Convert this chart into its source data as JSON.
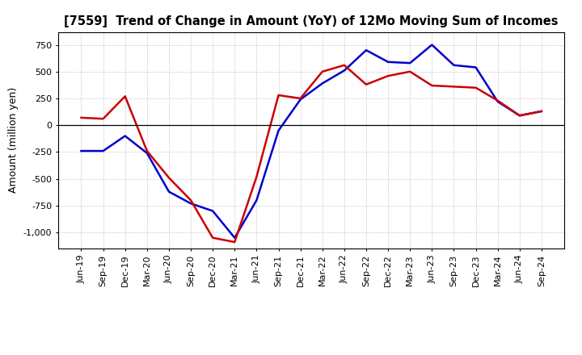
{
  "title": "[7559]  Trend of Change in Amount (YoY) of 12Mo Moving Sum of Incomes",
  "ylabel": "Amount (million yen)",
  "x_labels": [
    "Jun-19",
    "Sep-19",
    "Dec-19",
    "Mar-20",
    "Jun-20",
    "Sep-20",
    "Dec-20",
    "Mar-21",
    "Jun-21",
    "Sep-21",
    "Dec-21",
    "Mar-22",
    "Jun-22",
    "Sep-22",
    "Dec-22",
    "Mar-23",
    "Jun-23",
    "Sep-23",
    "Dec-23",
    "Mar-24",
    "Jun-24",
    "Sep-24"
  ],
  "ordinary_income": [
    -240,
    -240,
    -100,
    -260,
    -620,
    -730,
    -800,
    -1050,
    -700,
    -50,
    240,
    390,
    510,
    700,
    590,
    580,
    750,
    560,
    540,
    220,
    90,
    130
  ],
  "net_income": [
    70,
    60,
    270,
    -240,
    -490,
    -700,
    -1050,
    -1090,
    -480,
    280,
    250,
    500,
    560,
    380,
    460,
    500,
    370,
    360,
    350,
    230,
    90,
    130
  ],
  "ordinary_color": "#0000cc",
  "net_color": "#cc0000",
  "background_color": "#ffffff",
  "grid_color": "#b0b0b0",
  "ylim": [
    -1150,
    870
  ],
  "yticks": [
    -1000,
    -750,
    -500,
    -250,
    0,
    250,
    500,
    750
  ],
  "line_width": 1.8,
  "title_fontsize": 10.5,
  "tick_fontsize": 8,
  "ylabel_fontsize": 9
}
